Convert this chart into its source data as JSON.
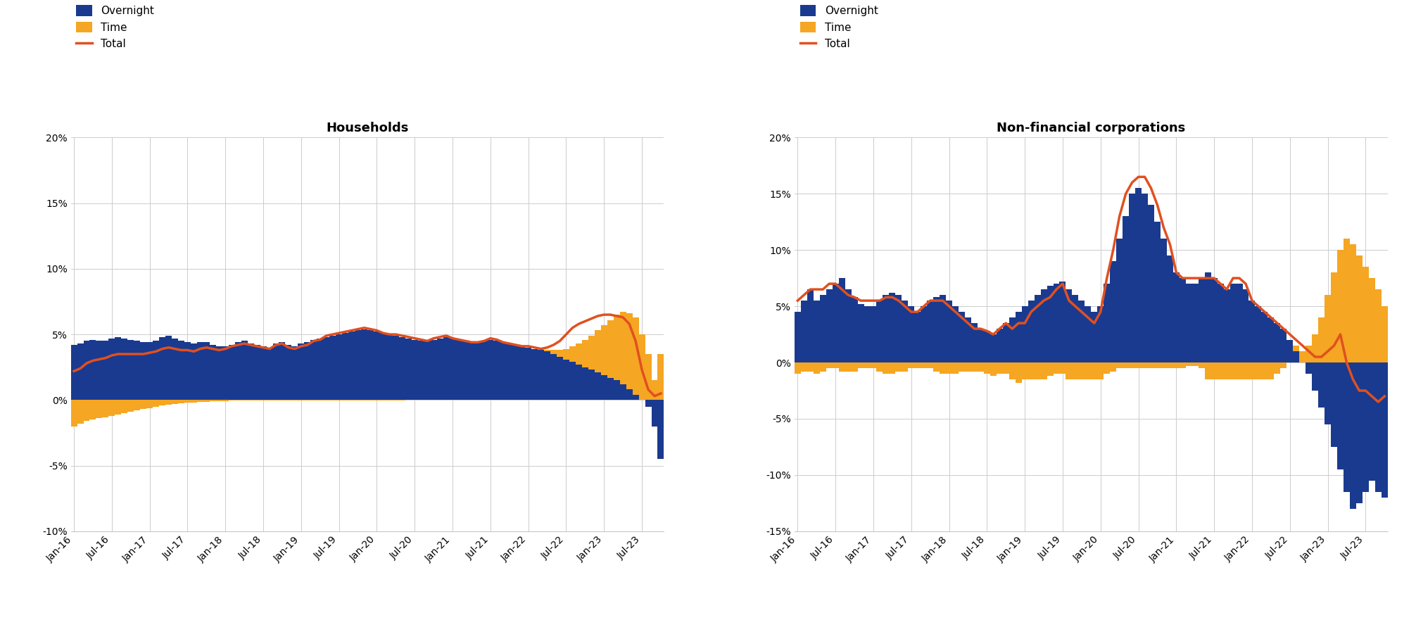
{
  "hh_overnight": [
    4.2,
    4.3,
    4.5,
    4.6,
    4.5,
    4.5,
    4.7,
    4.8,
    4.7,
    4.6,
    4.5,
    4.4,
    4.4,
    4.5,
    4.8,
    4.9,
    4.7,
    4.5,
    4.4,
    4.3,
    4.4,
    4.4,
    4.2,
    4.1,
    4.1,
    4.2,
    4.4,
    4.5,
    4.3,
    4.2,
    4.1,
    4.0,
    4.3,
    4.4,
    4.2,
    4.1,
    4.3,
    4.4,
    4.6,
    4.7,
    4.8,
    4.9,
    5.0,
    5.1,
    5.2,
    5.3,
    5.4,
    5.3,
    5.2,
    5.1,
    5.0,
    4.9,
    4.8,
    4.7,
    4.6,
    4.5,
    4.5,
    4.6,
    4.7,
    4.8,
    4.7,
    4.6,
    4.5,
    4.4,
    4.4,
    4.5,
    4.6,
    4.5,
    4.4,
    4.3,
    4.2,
    4.1,
    4.0,
    3.9,
    3.8,
    3.7,
    3.5,
    3.3,
    3.1,
    2.9,
    2.7,
    2.5,
    2.3,
    2.1,
    1.9,
    1.7,
    1.5,
    1.2,
    0.8,
    0.4,
    0.0,
    -0.5,
    -2.0,
    -4.5
  ],
  "hh_time": [
    -2.0,
    -1.8,
    -1.6,
    -1.5,
    -1.4,
    -1.3,
    -1.2,
    -1.1,
    -1.0,
    -0.9,
    -0.8,
    -0.7,
    -0.6,
    -0.5,
    -0.4,
    -0.35,
    -0.3,
    -0.25,
    -0.2,
    -0.18,
    -0.15,
    -0.12,
    -0.1,
    -0.08,
    -0.07,
    -0.06,
    -0.05,
    -0.05,
    -0.05,
    -0.05,
    -0.05,
    -0.05,
    -0.05,
    -0.05,
    -0.05,
    -0.05,
    -0.05,
    -0.05,
    -0.05,
    -0.05,
    -0.05,
    -0.05,
    -0.05,
    -0.05,
    -0.05,
    -0.05,
    -0.05,
    -0.05,
    -0.05,
    -0.04,
    -0.03,
    -0.02,
    -0.01,
    0.0,
    0.0,
    0.0,
    0.0,
    0.0,
    0.0,
    0.0,
    0.0,
    0.0,
    0.0,
    0.0,
    0.0,
    0.0,
    0.0,
    0.0,
    0.0,
    0.0,
    0.0,
    0.0,
    0.0,
    0.0,
    0.0,
    0.1,
    0.3,
    0.5,
    0.8,
    1.2,
    1.6,
    2.1,
    2.6,
    3.2,
    3.8,
    4.4,
    5.0,
    5.5,
    5.8,
    5.9,
    5.0,
    3.5,
    1.5,
    3.5
  ],
  "hh_total": [
    2.2,
    2.4,
    2.8,
    3.0,
    3.1,
    3.2,
    3.4,
    3.5,
    3.5,
    3.5,
    3.5,
    3.5,
    3.6,
    3.7,
    3.9,
    4.0,
    3.9,
    3.8,
    3.8,
    3.7,
    3.9,
    4.0,
    3.9,
    3.8,
    3.9,
    4.1,
    4.2,
    4.3,
    4.2,
    4.1,
    4.0,
    3.9,
    4.2,
    4.3,
    4.0,
    3.9,
    4.1,
    4.2,
    4.5,
    4.6,
    4.9,
    5.0,
    5.1,
    5.2,
    5.3,
    5.4,
    5.5,
    5.4,
    5.3,
    5.1,
    5.0,
    5.0,
    4.9,
    4.8,
    4.7,
    4.6,
    4.5,
    4.7,
    4.8,
    4.9,
    4.7,
    4.6,
    4.5,
    4.4,
    4.4,
    4.5,
    4.7,
    4.6,
    4.4,
    4.3,
    4.2,
    4.1,
    4.1,
    4.0,
    3.9,
    4.0,
    4.2,
    4.5,
    5.0,
    5.5,
    5.8,
    6.0,
    6.2,
    6.4,
    6.5,
    6.5,
    6.4,
    6.3,
    5.8,
    4.5,
    2.3,
    0.8,
    0.3,
    0.5
  ],
  "nfc_overnight": [
    4.5,
    5.5,
    6.5,
    5.5,
    6.0,
    6.5,
    7.0,
    7.5,
    6.5,
    5.8,
    5.2,
    5.0,
    5.0,
    5.5,
    6.0,
    6.2,
    6.0,
    5.5,
    5.0,
    4.5,
    5.0,
    5.5,
    5.8,
    6.0,
    5.5,
    5.0,
    4.5,
    4.0,
    3.5,
    3.0,
    2.8,
    2.5,
    3.0,
    3.5,
    4.0,
    4.5,
    5.0,
    5.5,
    6.0,
    6.5,
    6.8,
    7.0,
    7.2,
    6.5,
    6.0,
    5.5,
    5.0,
    4.5,
    5.0,
    7.0,
    9.0,
    11.0,
    13.0,
    15.0,
    15.5,
    15.0,
    14.0,
    12.5,
    11.0,
    9.5,
    8.0,
    7.5,
    7.0,
    7.0,
    7.5,
    8.0,
    7.5,
    7.0,
    6.5,
    7.0,
    7.0,
    6.5,
    5.5,
    5.0,
    4.5,
    4.0,
    3.5,
    3.0,
    2.0,
    1.0,
    0.0,
    -1.0,
    -2.5,
    -4.0,
    -5.5,
    -7.5,
    -9.5,
    -11.5,
    -13.0,
    -12.5,
    -11.5,
    -10.5,
    -11.5,
    -12.0
  ],
  "nfc_time": [
    -1.0,
    -0.8,
    -0.8,
    -1.0,
    -0.8,
    -0.5,
    -0.5,
    -0.8,
    -0.8,
    -0.8,
    -0.5,
    -0.5,
    -0.5,
    -0.8,
    -1.0,
    -1.0,
    -0.8,
    -0.8,
    -0.5,
    -0.5,
    -0.5,
    -0.5,
    -0.8,
    -1.0,
    -1.0,
    -1.0,
    -0.8,
    -0.8,
    -0.8,
    -0.8,
    -1.0,
    -1.2,
    -1.0,
    -1.0,
    -1.5,
    -1.8,
    -1.5,
    -1.5,
    -1.5,
    -1.5,
    -1.2,
    -1.0,
    -1.0,
    -1.5,
    -1.5,
    -1.5,
    -1.5,
    -1.5,
    -1.5,
    -1.0,
    -0.8,
    -0.5,
    -0.5,
    -0.5,
    -0.5,
    -0.5,
    -0.5,
    -0.5,
    -0.5,
    -0.5,
    -0.5,
    -0.5,
    -0.3,
    -0.3,
    -0.5,
    -1.5,
    -1.5,
    -1.5,
    -1.5,
    -1.5,
    -1.5,
    -1.5,
    -1.5,
    -1.5,
    -1.5,
    -1.5,
    -1.0,
    -0.5,
    0.0,
    0.5,
    1.0,
    1.5,
    2.5,
    4.0,
    6.0,
    8.0,
    10.0,
    11.0,
    10.5,
    9.5,
    8.5,
    7.5,
    6.5,
    5.0
  ],
  "nfc_total": [
    5.5,
    6.0,
    6.5,
    6.5,
    6.5,
    7.0,
    7.0,
    6.5,
    6.0,
    5.8,
    5.5,
    5.5,
    5.5,
    5.5,
    5.8,
    5.8,
    5.5,
    5.0,
    4.5,
    4.5,
    5.0,
    5.5,
    5.5,
    5.5,
    5.0,
    4.5,
    4.0,
    3.5,
    3.0,
    3.0,
    2.8,
    2.5,
    3.0,
    3.5,
    3.0,
    3.5,
    3.5,
    4.5,
    5.0,
    5.5,
    5.8,
    6.5,
    7.0,
    5.5,
    5.0,
    4.5,
    4.0,
    3.5,
    4.5,
    7.5,
    10.0,
    13.0,
    15.0,
    16.0,
    16.5,
    16.5,
    15.5,
    14.0,
    12.0,
    10.5,
    8.0,
    7.5,
    7.5,
    7.5,
    7.5,
    7.5,
    7.5,
    7.0,
    6.5,
    7.5,
    7.5,
    7.0,
    5.5,
    5.0,
    4.5,
    4.0,
    3.5,
    3.0,
    2.5,
    2.0,
    1.5,
    1.0,
    0.5,
    0.5,
    1.0,
    1.5,
    2.5,
    0.0,
    -1.5,
    -2.5,
    -2.5,
    -3.0,
    -3.5,
    -3.0
  ],
  "hh_ylim": [
    -10,
    20
  ],
  "nfc_ylim": [
    -15,
    20
  ],
  "hh_yticks": [
    -10,
    -5,
    0,
    5,
    10,
    15,
    20
  ],
  "nfc_yticks": [
    -15,
    -10,
    -5,
    0,
    5,
    10,
    15,
    20
  ],
  "color_overnight": "#1a3a8f",
  "color_time": "#f5a623",
  "color_total": "#e05020",
  "title_hh": "Households",
  "title_nfc": "Non-financial corporations",
  "legend_overnight": "Overnight",
  "legend_time": "Time",
  "legend_total": "Total",
  "bg_color": "#ffffff",
  "grid_color": "#cccccc",
  "n_points": 94
}
